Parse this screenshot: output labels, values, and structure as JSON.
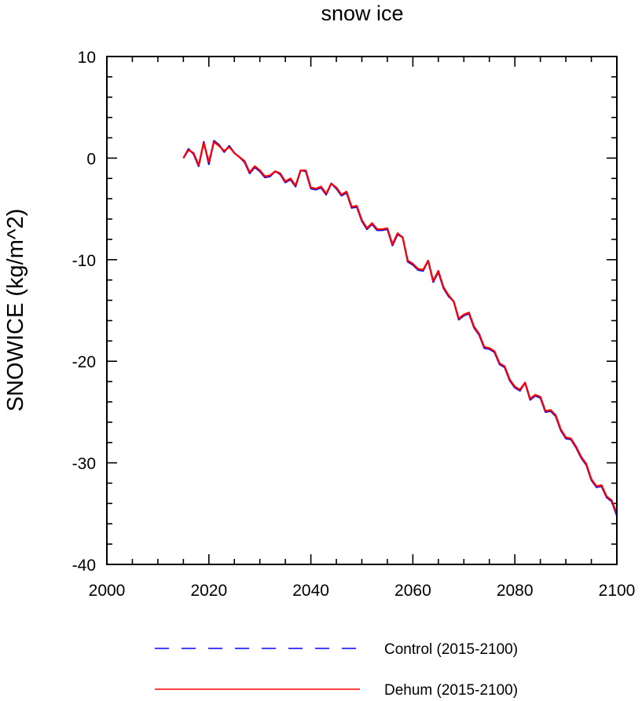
{
  "chart_data": {
    "type": "line",
    "title": "snow ice",
    "xlabel": "",
    "ylabel": "SNOWICE  (kg/m^2)",
    "xlim": [
      2000,
      2100
    ],
    "ylim": [
      -40,
      10
    ],
    "xticks": [
      2000,
      2020,
      2040,
      2060,
      2080,
      2100
    ],
    "yticks": [
      10,
      0,
      -10,
      -20,
      -30,
      -40
    ],
    "xtick_labels": [
      "2000",
      "2020",
      "2040",
      "2060",
      "2080",
      "2100"
    ],
    "ytick_labels": [
      "10",
      "0",
      "-10",
      "-20",
      "-30",
      "-40"
    ],
    "x": [
      2015,
      2016,
      2017,
      2018,
      2019,
      2020,
      2021,
      2022,
      2023,
      2024,
      2025,
      2026,
      2027,
      2028,
      2029,
      2030,
      2031,
      2032,
      2033,
      2034,
      2035,
      2036,
      2037,
      2038,
      2039,
      2040,
      2041,
      2042,
      2043,
      2044,
      2045,
      2046,
      2047,
      2048,
      2049,
      2050,
      2051,
      2052,
      2053,
      2054,
      2055,
      2056,
      2057,
      2058,
      2059,
      2060,
      2061,
      2062,
      2063,
      2064,
      2065,
      2066,
      2067,
      2068,
      2069,
      2070,
      2071,
      2072,
      2073,
      2074,
      2075,
      2076,
      2077,
      2078,
      2079,
      2080,
      2081,
      2082,
      2083,
      2084,
      2085,
      2086,
      2087,
      2088,
      2089,
      2090,
      2091,
      2092,
      2093,
      2094,
      2095,
      2096,
      2097,
      2098,
      2099,
      2100
    ],
    "series": [
      {
        "name": "Control (2015-2100)",
        "color": "#0000ff",
        "style": "dashed",
        "values": [
          0.0,
          0.9,
          0.4,
          -0.8,
          1.6,
          -0.6,
          1.7,
          1.3,
          0.6,
          1.2,
          0.5,
          0.1,
          -0.4,
          -1.5,
          -0.9,
          -1.3,
          -1.9,
          -1.8,
          -1.3,
          -1.6,
          -2.4,
          -2.1,
          -2.8,
          -1.2,
          -1.3,
          -3.0,
          -3.1,
          -2.9,
          -3.6,
          -2.5,
          -3.0,
          -3.7,
          -3.4,
          -4.9,
          -4.8,
          -6.2,
          -7.0,
          -6.5,
          -7.1,
          -7.1,
          -7.0,
          -8.6,
          -7.5,
          -7.8,
          -10.2,
          -10.5,
          -11.0,
          -11.1,
          -10.1,
          -12.2,
          -11.2,
          -12.8,
          -13.6,
          -14.1,
          -15.9,
          -15.5,
          -15.3,
          -16.7,
          -17.4,
          -18.7,
          -18.8,
          -19.1,
          -20.3,
          -20.6,
          -21.9,
          -22.6,
          -22.9,
          -22.1,
          -23.8,
          -23.4,
          -23.6,
          -25.0,
          -24.9,
          -25.4,
          -26.8,
          -27.6,
          -27.7,
          -28.5,
          -29.5,
          -30.2,
          -31.7,
          -32.4,
          -32.3,
          -33.4,
          -33.8,
          -35.2
        ]
      },
      {
        "name": "Dehum (2015-2100)",
        "color": "#ff0000",
        "style": "solid",
        "values": [
          0.0,
          0.8,
          0.5,
          -0.7,
          1.5,
          -0.4,
          1.6,
          1.2,
          0.7,
          1.1,
          0.5,
          0.1,
          -0.3,
          -1.4,
          -0.8,
          -1.2,
          -1.8,
          -1.7,
          -1.3,
          -1.5,
          -2.3,
          -2.0,
          -2.7,
          -1.2,
          -1.2,
          -2.9,
          -3.0,
          -2.8,
          -3.5,
          -2.5,
          -2.9,
          -3.6,
          -3.3,
          -4.8,
          -4.7,
          -6.1,
          -6.9,
          -6.4,
          -7.0,
          -7.0,
          -6.9,
          -8.5,
          -7.4,
          -7.8,
          -10.1,
          -10.4,
          -10.9,
          -11.0,
          -10.1,
          -12.1,
          -11.1,
          -12.7,
          -13.5,
          -14.1,
          -15.8,
          -15.4,
          -15.2,
          -16.6,
          -17.3,
          -18.6,
          -18.7,
          -19.0,
          -20.2,
          -20.5,
          -21.8,
          -22.5,
          -22.8,
          -22.1,
          -23.7,
          -23.3,
          -23.5,
          -24.9,
          -24.8,
          -25.3,
          -26.7,
          -27.5,
          -27.6,
          -28.4,
          -29.4,
          -30.1,
          -31.6,
          -32.3,
          -32.2,
          -33.3,
          -33.7,
          -35.0
        ]
      }
    ],
    "legend": {
      "placement": "bottom",
      "entries": [
        "Control (2015-2100)",
        "Dehum (2015-2100)"
      ]
    },
    "grid": false
  }
}
